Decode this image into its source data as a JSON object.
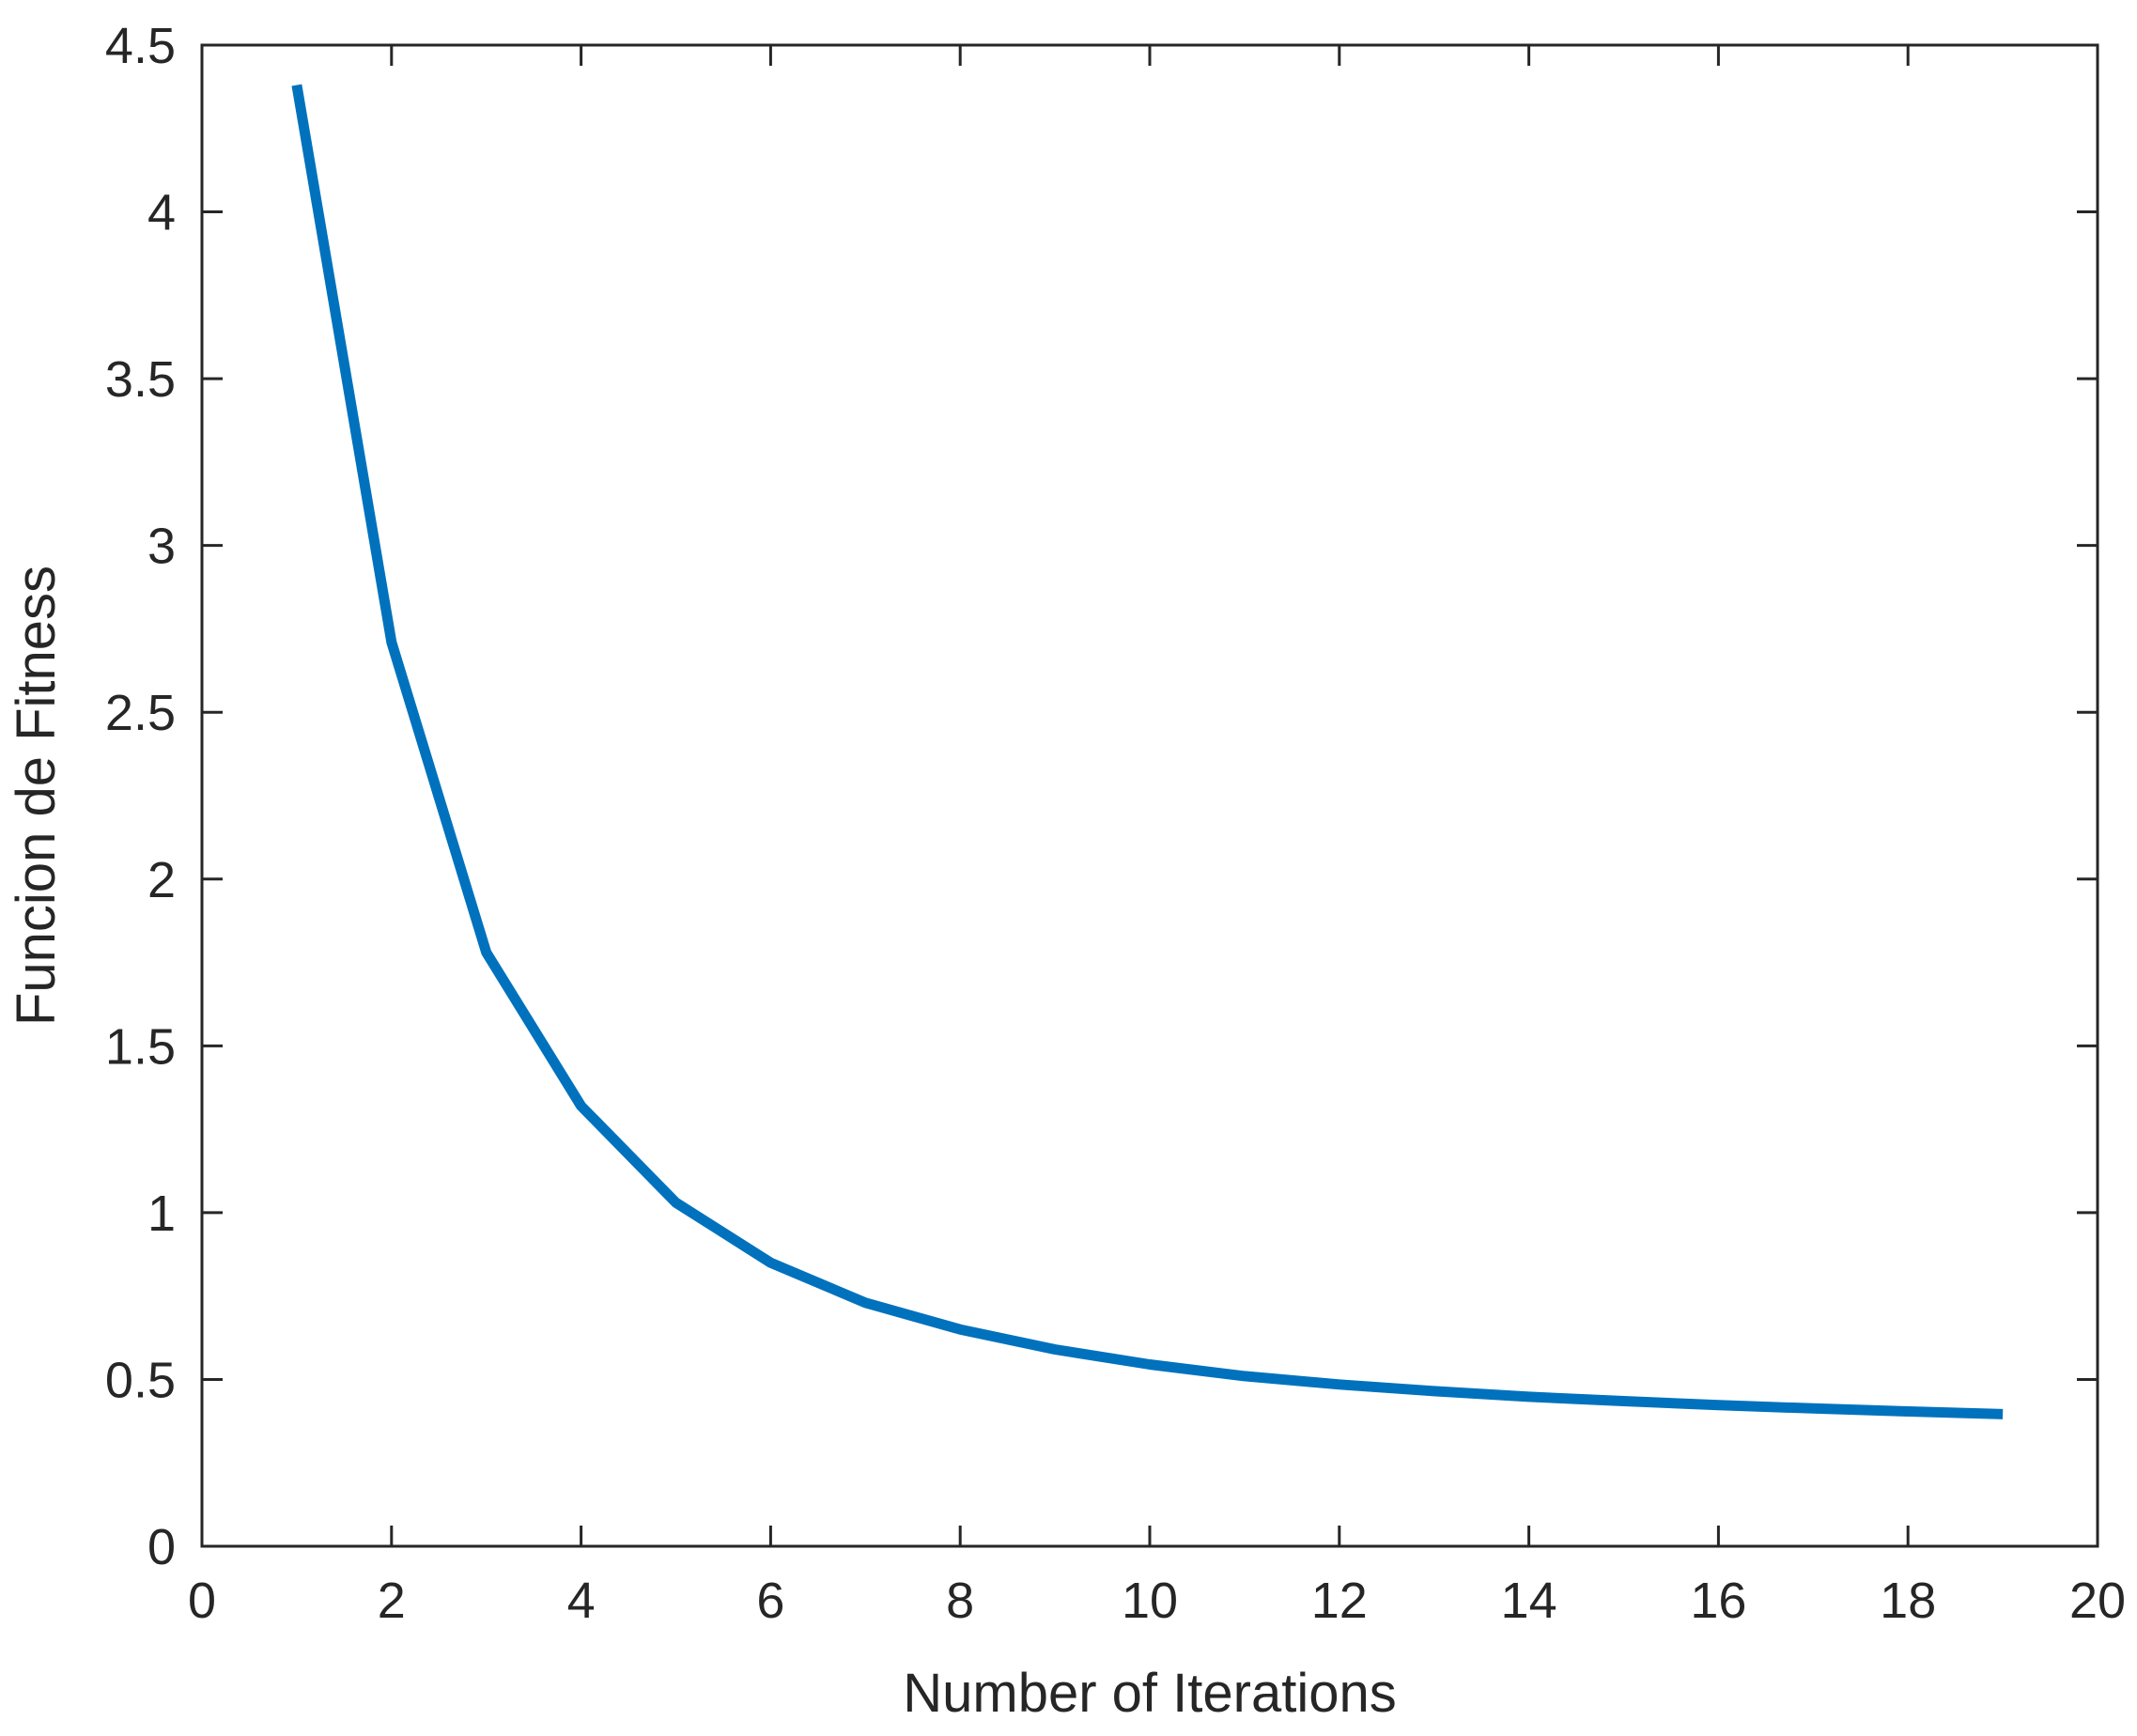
{
  "chart_data": {
    "type": "line",
    "title": "",
    "xlabel": "Number of Iterations",
    "ylabel": "Funcion de Fitness",
    "xlim": [
      0,
      20
    ],
    "ylim": [
      0,
      4.5
    ],
    "xticks": [
      0,
      2,
      4,
      6,
      8,
      10,
      12,
      14,
      16,
      18,
      20
    ],
    "yticks": [
      0,
      0.5,
      1,
      1.5,
      2,
      2.5,
      3,
      3.5,
      4,
      4.5
    ],
    "xtick_labels": [
      "0",
      "2",
      "4",
      "6",
      "8",
      "10",
      "12",
      "14",
      "16",
      "18",
      "20"
    ],
    "ytick_labels": [
      "0",
      "0.5",
      "1",
      "1.5",
      "2",
      "2.5",
      "3",
      "3.5",
      "4",
      "4.5"
    ],
    "grid": false,
    "legend": "none",
    "series": [
      {
        "color": "#0072BD",
        "x": [
          1,
          2,
          3,
          4,
          5,
          6,
          7,
          8,
          9,
          10,
          11,
          12,
          13,
          14,
          15,
          16,
          17,
          18,
          19
        ],
        "y": [
          4.38,
          2.71,
          1.78,
          1.32,
          1.03,
          0.85,
          0.73,
          0.65,
          0.59,
          0.545,
          0.51,
          0.485,
          0.465,
          0.448,
          0.435,
          0.423,
          0.413,
          0.404,
          0.396
        ]
      }
    ]
  }
}
